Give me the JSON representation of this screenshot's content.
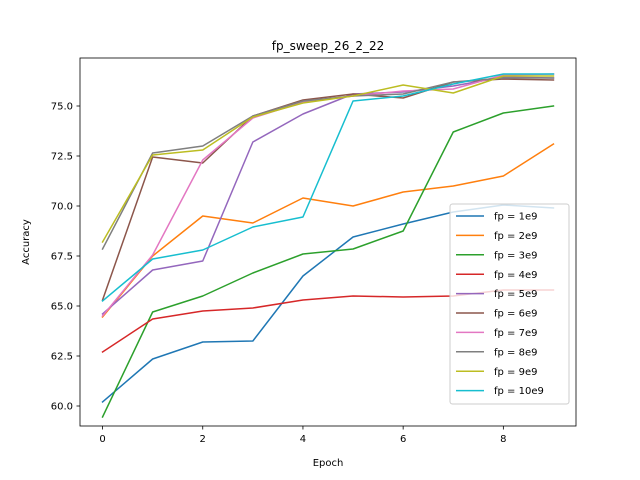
{
  "chart_data": {
    "type": "line",
    "title": "fp_sweep_26_2_22",
    "xlabel": "Epoch",
    "ylabel": "Accuracy",
    "x": [
      0,
      1,
      2,
      3,
      4,
      5,
      6,
      7,
      8,
      9
    ],
    "xlim": [
      -0.45,
      9.45
    ],
    "ylim": [
      59.0,
      77.4
    ],
    "xticks": [
      0,
      2,
      4,
      6,
      8
    ],
    "yticks": [
      60.0,
      62.5,
      65.0,
      67.5,
      70.0,
      72.5,
      75.0
    ],
    "grid": false,
    "legend_position": "lower-right",
    "series": [
      {
        "name": "fp = 1e9",
        "color": "#1f77b4",
        "values": [
          60.2,
          62.35,
          63.2,
          63.25,
          66.5,
          68.45,
          69.1,
          69.7,
          70.05,
          69.9
        ]
      },
      {
        "name": "fp = 2e9",
        "color": "#ff7f0e",
        "values": [
          64.45,
          67.5,
          69.5,
          69.15,
          70.4,
          70.0,
          70.7,
          71.0,
          71.5,
          73.1
        ]
      },
      {
        "name": "fp = 3e9",
        "color": "#2ca02c",
        "values": [
          59.45,
          64.7,
          65.5,
          66.65,
          67.6,
          67.85,
          68.75,
          73.7,
          74.65,
          75.0
        ]
      },
      {
        "name": "fp = 4e9",
        "color": "#d62728",
        "values": [
          62.7,
          64.35,
          64.75,
          64.9,
          65.3,
          65.5,
          65.45,
          65.5,
          65.8,
          65.8
        ]
      },
      {
        "name": "fp = 5e9",
        "color": "#9467bd",
        "values": [
          64.6,
          66.8,
          67.25,
          73.2,
          74.6,
          75.6,
          75.7,
          76.0,
          76.45,
          76.4
        ]
      },
      {
        "name": "fp = 6e9",
        "color": "#8c564b",
        "values": [
          65.3,
          72.45,
          72.15,
          74.5,
          75.3,
          75.6,
          75.4,
          76.2,
          76.35,
          76.3
        ]
      },
      {
        "name": "fp = 7e9",
        "color": "#e377c2",
        "values": [
          64.5,
          67.55,
          72.3,
          74.4,
          75.2,
          75.5,
          75.75,
          75.85,
          76.55,
          76.6
        ]
      },
      {
        "name": "fp = 8e9",
        "color": "#7f7f7f",
        "values": [
          67.85,
          72.65,
          73.0,
          74.5,
          75.25,
          75.5,
          75.6,
          76.2,
          76.4,
          76.4
        ]
      },
      {
        "name": "fp = 9e9",
        "color": "#bcbd22",
        "values": [
          68.2,
          72.55,
          72.8,
          74.45,
          75.15,
          75.5,
          76.05,
          75.65,
          76.5,
          76.5
        ]
      },
      {
        "name": "fp = 10e9",
        "color": "#17becf",
        "values": [
          65.25,
          67.35,
          67.8,
          68.95,
          69.45,
          75.25,
          75.5,
          76.1,
          76.6,
          76.6
        ]
      }
    ]
  }
}
